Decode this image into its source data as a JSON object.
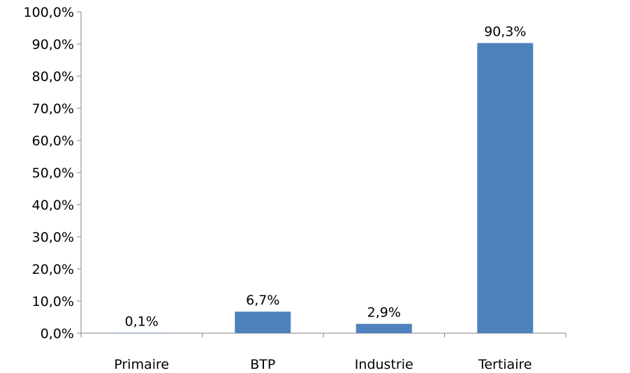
{
  "chart_data": {
    "type": "bar",
    "categories": [
      "Primaire",
      "BTP",
      "Industrie",
      "Tertiaire"
    ],
    "values": [
      0.1,
      6.7,
      2.9,
      90.3
    ],
    "data_labels": [
      "0,1%",
      "6,7%",
      "2,9%",
      "90,3%"
    ],
    "y_ticks": [
      "0,0%",
      "10,0%",
      "20,0%",
      "30,0%",
      "40,0%",
      "50,0%",
      "60,0%",
      "70,0%",
      "80,0%",
      "90,0%",
      "100,0%"
    ],
    "ylim": [
      0,
      100
    ],
    "y_tick_step": 10,
    "grid": false,
    "legend": "none",
    "bar_color": "#4F81BD",
    "axis_color": "#868686"
  }
}
